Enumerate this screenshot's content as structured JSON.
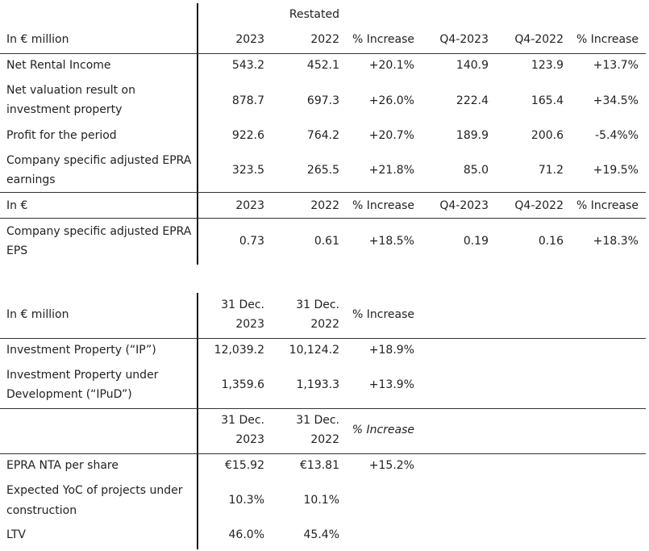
{
  "table1": {
    "restated_label": "Restated",
    "header": {
      "label": "In € million",
      "cols": [
        "2023",
        "2022",
        "% Increase",
        "Q4-2023",
        "Q4-2022",
        "% Increase"
      ]
    },
    "rows": [
      {
        "label": [
          "Net Rental Income"
        ],
        "values": [
          "543.2",
          "452.1",
          "+20.1%",
          "140.9",
          "123.9",
          "+13.7%"
        ]
      },
      {
        "label": [
          "Net valuation result on",
          "investment property"
        ],
        "values": [
          "878.7",
          "697.3",
          "+26.0%",
          "222.4",
          "165.4",
          "+34.5%"
        ]
      },
      {
        "label": [
          "Profit for the period"
        ],
        "values": [
          "922.6",
          "764.2",
          "+20.7%",
          "189.9",
          "200.6",
          "-5.4%%"
        ]
      },
      {
        "label": [
          "Company specific adjusted EPRA",
          "earnings"
        ],
        "values": [
          "323.5",
          "265.5",
          "+21.8%",
          "85.0",
          "71.2",
          "+19.5%"
        ]
      }
    ],
    "subheader": {
      "label": "In €",
      "cols": [
        "2023",
        "2022",
        "% Increase",
        "Q4-2023",
        "Q4-2022",
        "% Increase"
      ]
    },
    "eps_row": {
      "label": [
        "Company specific adjusted EPRA",
        "EPS"
      ],
      "values": [
        "0.73",
        "0.61",
        "+18.5%",
        "0.19",
        "0.16",
        "+18.3%"
      ]
    }
  },
  "table2": {
    "header": {
      "label": "In € million",
      "col1": [
        "31 Dec.",
        "2023"
      ],
      "col2": [
        "31 Dec.",
        "2022"
      ],
      "col3": "% Increase"
    },
    "rows": [
      {
        "label": [
          "Investment Property (“IP”)"
        ],
        "values": [
          "12,039.2",
          "10,124.2",
          "+18.9%"
        ]
      },
      {
        "label": [
          "Investment Property under",
          "Development (“IPuD”)"
        ],
        "values": [
          "1,359.6",
          "1,193.3",
          "+13.9%"
        ]
      }
    ],
    "header2": {
      "col1": [
        "31 Dec.",
        "2023"
      ],
      "col2": [
        "31 Dec.",
        "2022"
      ],
      "col3": "% Increase"
    },
    "rows2": [
      {
        "label": [
          "EPRA NTA per share"
        ],
        "values": [
          "€15.92",
          "€13.81",
          "+15.2%"
        ]
      },
      {
        "label": [
          "Expected YoC of projects under",
          "construction"
        ],
        "values": [
          "10.3%",
          "10.1%",
          ""
        ]
      },
      {
        "label": [
          "LTV"
        ],
        "values": [
          "46.0%",
          "45.4%",
          ""
        ]
      }
    ]
  }
}
